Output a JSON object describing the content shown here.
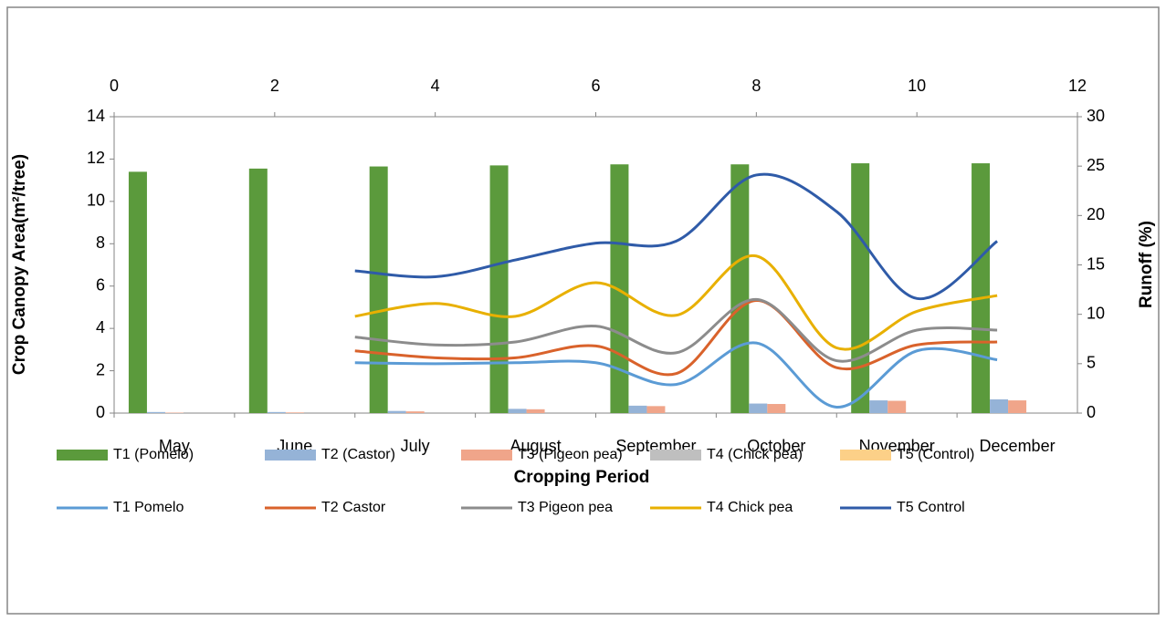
{
  "chart_data": {
    "type": "bar",
    "x_label": "Cropping Period",
    "y_label": "Crop Canopy Area(m²/tree)",
    "y2_label": "Runoff (%)",
    "categories": [
      "May",
      "June",
      "July",
      "August",
      "September",
      "October",
      "November",
      "December"
    ],
    "ylim": [
      0,
      14
    ],
    "yticks": [
      0,
      2,
      4,
      6,
      8,
      10,
      12,
      14
    ],
    "y2lim": [
      0,
      30
    ],
    "y2ticks": [
      0,
      5,
      10,
      15,
      20,
      25,
      30
    ],
    "xlim": [
      0,
      12
    ],
    "xticks": [
      0,
      2,
      4,
      6,
      8,
      10,
      12
    ],
    "series": [
      {
        "name": "T1 (Pomelo)",
        "type": "bar",
        "color": "#5b9a3c",
        "values": [
          11.4,
          11.55,
          11.65,
          11.7,
          11.75,
          11.75,
          11.8,
          11.8
        ]
      },
      {
        "name": "T2 (Castor)",
        "type": "bar",
        "color": "#95b3d7",
        "values": [
          0.05,
          0.05,
          0.1,
          0.2,
          0.35,
          0.45,
          0.6,
          0.65
        ]
      },
      {
        "name": "T3 (Pigeon pea)",
        "type": "bar",
        "color": "#f0a58a",
        "values": [
          0.02,
          0.03,
          0.08,
          0.18,
          0.33,
          0.43,
          0.58,
          0.6
        ]
      },
      {
        "name": "T4 (Chick pea)",
        "type": "bar",
        "color": "#bfbfbf",
        "values": [
          0,
          0,
          0,
          0,
          0,
          0,
          0,
          0
        ]
      },
      {
        "name": "T5 (Control)",
        "type": "bar",
        "color": "#fcd088",
        "values": [
          0,
          0,
          0,
          0,
          0,
          0,
          0,
          0
        ]
      },
      {
        "name": "T1 Pomelo",
        "type": "line",
        "axis": "y2",
        "color": "#5b9bd5",
        "x": [
          3,
          4,
          5,
          6,
          7,
          8,
          9,
          10,
          11
        ],
        "values": [
          5.1,
          5.0,
          5.1,
          5.1,
          2.9,
          7.1,
          0.6,
          6.3,
          5.4
        ]
      },
      {
        "name": "T2 Castor",
        "type": "line",
        "axis": "y2",
        "color": "#d9622b",
        "x": [
          3,
          4,
          5,
          6,
          7,
          8,
          9,
          10,
          11
        ],
        "values": [
          6.3,
          5.6,
          5.6,
          6.8,
          4.0,
          11.4,
          4.6,
          6.9,
          7.2
        ]
      },
      {
        "name": "T3 Pigeon pea",
        "type": "line",
        "axis": "y2",
        "color": "#8c8c8c",
        "x": [
          3,
          4,
          5,
          6,
          7,
          8,
          9,
          10,
          11
        ],
        "values": [
          7.7,
          6.9,
          7.2,
          8.8,
          6.1,
          11.5,
          5.3,
          8.4,
          8.4
        ]
      },
      {
        "name": "T4 Chick pea",
        "type": "line",
        "axis": "y2",
        "color": "#e8b000",
        "x": [
          3,
          4,
          5,
          6,
          7,
          8,
          9,
          10,
          11
        ],
        "values": [
          9.8,
          11.1,
          9.8,
          13.2,
          9.9,
          15.9,
          6.6,
          10.3,
          11.9
        ]
      },
      {
        "name": "T5 Control",
        "type": "line",
        "axis": "y2",
        "color": "#2f5ba8",
        "x": [
          3,
          4,
          5,
          6,
          7,
          8,
          9,
          10,
          11
        ],
        "values": [
          14.4,
          13.8,
          15.5,
          17.2,
          17.4,
          24.1,
          20.4,
          11.6,
          17.4
        ]
      }
    ]
  }
}
